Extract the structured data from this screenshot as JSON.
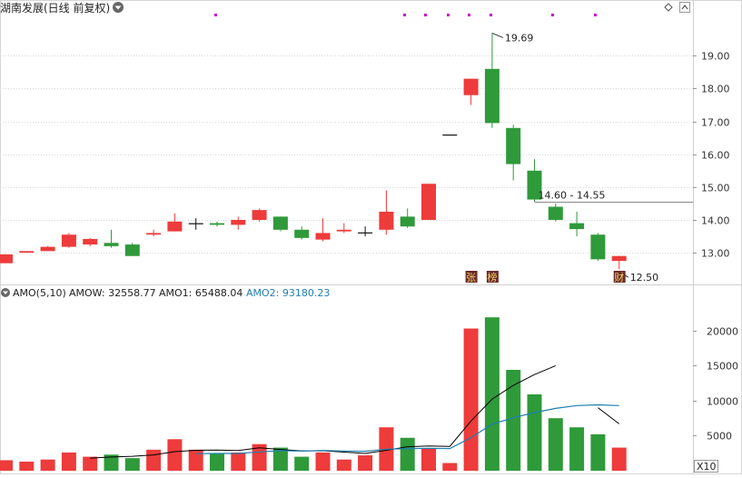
{
  "title": "湖南发展(日线 前复权)",
  "indicator": {
    "name": "AMO(5,10)",
    "amow_label": "AMOW: 32558.77",
    "amo1_label": "AMO1: 65488.04",
    "amo2_label": "AMO2: 93180.23",
    "multiplier": "X10"
  },
  "badges": [
    {
      "text": "张",
      "candle_index": 22
    },
    {
      "text": "榜",
      "candle_index": 23
    },
    {
      "text": "财",
      "candle_index": 29
    }
  ],
  "annotations": {
    "high": "19.69",
    "low": "12.50",
    "range": "14.60 - 14.55"
  },
  "colors": {
    "up": "#ee3b3b",
    "down": "#2f9a3a",
    "amow_line": "#000000",
    "amo1_line": "#1f7fb0",
    "amo2_text": "#1f7fb0",
    "marker": "#cc00cc"
  },
  "chart_data": [
    {
      "type": "candlestick",
      "title": "湖南发展(日线 前复权)",
      "ylim": [
        12.2,
        20.2
      ],
      "yticks": [
        "13.00",
        "14.00",
        "15.00",
        "16.00",
        "17.00",
        "18.00",
        "19.00"
      ],
      "grid": true,
      "ohlc": [
        [
          12.68,
          12.95,
          12.68,
          12.95
        ],
        [
          13.0,
          13.05,
          13.0,
          13.05
        ],
        [
          13.05,
          13.2,
          13.05,
          13.18
        ],
        [
          13.18,
          13.6,
          13.15,
          13.55
        ],
        [
          13.25,
          13.45,
          13.2,
          13.42
        ],
        [
          13.3,
          13.7,
          13.15,
          13.2
        ],
        [
          13.25,
          13.3,
          12.9,
          12.9
        ],
        [
          13.55,
          13.7,
          13.5,
          13.6
        ],
        [
          13.65,
          14.2,
          13.65,
          13.95
        ],
        [
          13.9,
          14.05,
          13.7,
          13.9
        ],
        [
          13.9,
          13.95,
          13.8,
          13.85
        ],
        [
          13.85,
          14.1,
          13.7,
          14.0
        ],
        [
          14.0,
          14.35,
          13.95,
          14.3
        ],
        [
          14.1,
          14.1,
          13.65,
          13.7
        ],
        [
          13.7,
          13.8,
          13.4,
          13.45
        ],
        [
          13.4,
          14.05,
          13.35,
          13.6
        ],
        [
          13.65,
          13.9,
          13.6,
          13.7
        ],
        [
          13.62,
          13.8,
          13.5,
          13.62
        ],
        [
          13.7,
          14.9,
          13.55,
          14.25
        ],
        [
          14.1,
          14.35,
          13.75,
          13.8
        ],
        [
          14.0,
          15.1,
          14.0,
          15.1
        ],
        [
          16.6,
          16.6,
          16.6,
          16.6
        ],
        [
          17.8,
          18.3,
          17.5,
          18.3
        ],
        [
          18.6,
          19.69,
          16.8,
          16.95
        ],
        [
          16.8,
          16.9,
          15.2,
          15.7
        ],
        [
          15.5,
          15.85,
          14.55,
          14.62
        ],
        [
          14.4,
          14.5,
          13.95,
          14.0
        ],
        [
          13.9,
          14.25,
          13.5,
          13.72
        ],
        [
          13.55,
          13.6,
          12.75,
          12.8
        ],
        [
          12.75,
          12.9,
          12.5,
          12.9
        ]
      ]
    },
    {
      "type": "bar",
      "title": "AMO(5,10)",
      "ylim": [
        0,
        24000
      ],
      "yticks": [
        "5000",
        "10000",
        "15000",
        "20000"
      ],
      "values": [
        1500,
        1300,
        1600,
        2600,
        2000,
        2300,
        1800,
        3000,
        4500,
        3000,
        2500,
        2600,
        3800,
        3300,
        2000,
        2600,
        1600,
        2200,
        6200,
        4700,
        3200,
        1100,
        20300,
        21900,
        14400,
        10900,
        7500,
        6200,
        5200,
        3300
      ],
      "series": [
        {
          "name": "AMOW",
          "values": [
            null,
            null,
            null,
            null,
            1800,
            1960,
            2060,
            2260,
            2720,
            2920,
            2960,
            2880,
            3280,
            3040,
            2840,
            2860,
            2660,
            2460,
            2920,
            3420,
            3540,
            3480,
            7100,
            10240,
            12180,
            13720,
            15000,
            null,
            9000,
            6700
          ]
        },
        {
          "name": "AMO1",
          "values": [
            null,
            null,
            null,
            null,
            null,
            null,
            null,
            null,
            null,
            2420,
            2460,
            2470,
            2680,
            2870,
            2800,
            2890,
            2800,
            2770,
            3080,
            3170,
            3200,
            3170,
            4720,
            6660,
            7560,
            8300,
            8900,
            9300,
            9400,
            9300
          ]
        }
      ]
    }
  ]
}
